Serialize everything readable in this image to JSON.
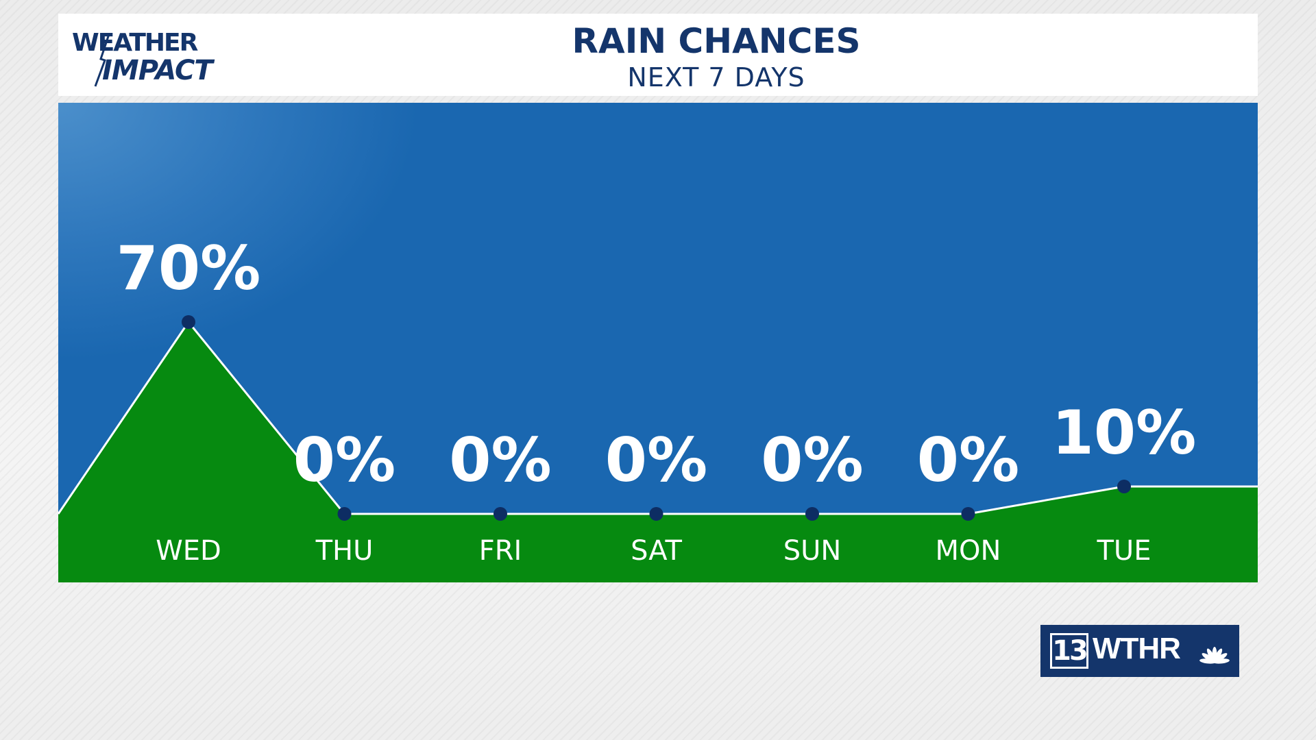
{
  "header": {
    "logo_line1": "WEATHER",
    "logo_line2": "IMPACT",
    "title": "RAIN CHANCES",
    "subtitle": "NEXT 7 DAYS"
  },
  "brand": {
    "channel": "13",
    "call_letters": "WTHR",
    "network_icon": "peacock-icon"
  },
  "colors": {
    "header_text": "#14356b",
    "chart_background": "#1a67b0",
    "area_fill": "#068a10",
    "line": "#ffffff",
    "marker": "#0d2d63"
  },
  "chart_data": {
    "type": "area",
    "title": "RAIN CHANCES",
    "subtitle": "NEXT 7 DAYS",
    "categories": [
      "WED",
      "THU",
      "FRI",
      "SAT",
      "SUN",
      "MON",
      "TUE"
    ],
    "values": [
      70,
      0,
      0,
      0,
      0,
      0,
      10
    ],
    "value_labels": [
      "70%",
      "0%",
      "0%",
      "0%",
      "0%",
      "0%",
      "10%"
    ],
    "ylim": [
      0,
      100
    ],
    "grid": false,
    "legend": "none",
    "xlabel": "",
    "ylabel": ""
  }
}
